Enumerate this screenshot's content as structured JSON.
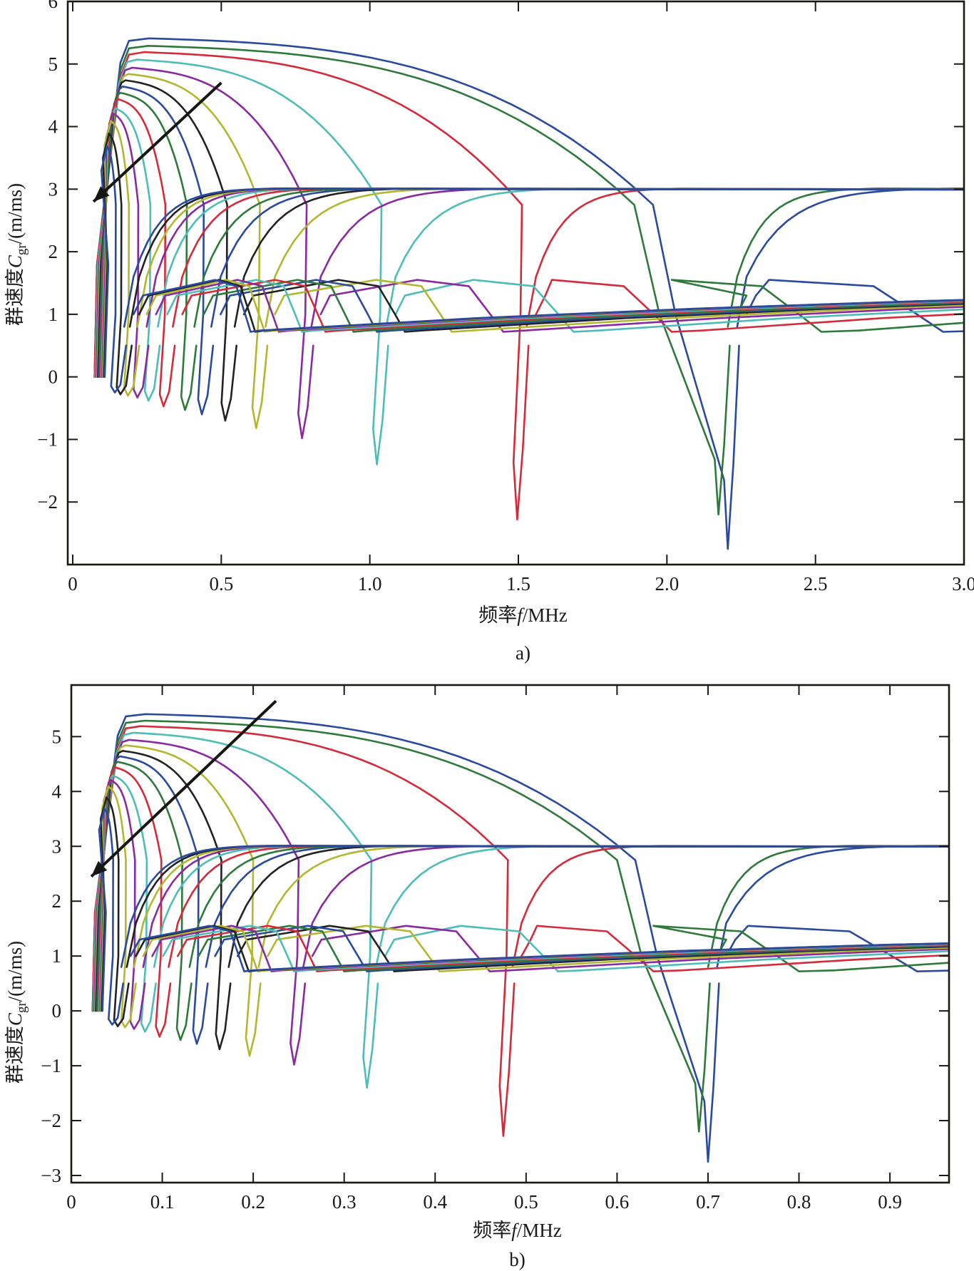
{
  "figure": {
    "panel_labels": [
      "a)",
      "b)"
    ]
  },
  "palette": {
    "blue": "#2a4aa0",
    "green": "#2e7a3a",
    "red": "#d62a3a",
    "cyan": "#4dbdb8",
    "purple": "#8a2aa0",
    "olive": "#b2b82e",
    "black": "#222222"
  },
  "chart_data": [
    {
      "type": "line",
      "panel": "a)",
      "title": "",
      "xlabel": "频率f/MHz",
      "xlabel_parts": {
        "prefix": "频率",
        "var": "f",
        "suffix": "/MHz"
      },
      "ylabel": "群速度C_gr/(m/ms)",
      "ylabel_parts": {
        "prefix": "群速度",
        "var": "C",
        "sub": "gr",
        "suffix": "/(m/ms)"
      },
      "xlim": [
        0,
        3.0
      ],
      "ylim": [
        -3.0,
        6.0
      ],
      "xticks": [
        0,
        0.5,
        1.0,
        1.5,
        2.0,
        2.5,
        3.0
      ],
      "xtick_labels": [
        "0",
        "0.5",
        "1.0",
        "1.5",
        "2.0",
        "2.5",
        "3.0"
      ],
      "yticks": [
        -2,
        -1,
        0,
        1,
        2,
        3,
        4,
        5,
        6
      ],
      "ytick_labels": [
        "−2",
        "−1",
        "0",
        "1",
        "2",
        "3",
        "4",
        "5",
        "6"
      ],
      "grid": false,
      "legend": "none",
      "annotation": {
        "type": "arrow",
        "from": [
          0.5,
          4.7
        ],
        "to": [
          0.07,
          2.8
        ],
        "head": "end"
      },
      "x_scale_from_b": 3.15
    },
    {
      "type": "line",
      "panel": "b)",
      "title": "",
      "xlabel": "频率f/MHz",
      "xlabel_parts": {
        "prefix": "频率",
        "var": "f",
        "suffix": "/MHz"
      },
      "ylabel": "群速度C_gr/(m/ms)",
      "ylabel_parts": {
        "prefix": "群速度",
        "var": "C",
        "sub": "gr",
        "suffix": "/(m/ms)"
      },
      "xlim": [
        0,
        0.965
      ],
      "ylim": [
        -3.13,
        5.94
      ],
      "xticks": [
        0,
        0.1,
        0.2,
        0.3,
        0.4,
        0.5,
        0.6,
        0.7,
        0.8,
        0.9
      ],
      "xtick_labels": [
        "0",
        "0.1",
        "0.2",
        "0.3",
        "0.4",
        "0.5",
        "0.6",
        "0.7",
        "0.8",
        "0.9"
      ],
      "yticks": [
        -3,
        -2,
        -1,
        0,
        1,
        2,
        3,
        4,
        5
      ],
      "ytick_labels": [
        "−3",
        "−2",
        "−1",
        "0",
        "1",
        "2",
        "3",
        "4",
        "5"
      ],
      "grid": false,
      "legend": "none",
      "annotation": {
        "type": "arrow",
        "from": [
          0.225,
          5.65
        ],
        "to": [
          0.022,
          2.45
        ],
        "head": "end"
      },
      "series": [
        {
          "name": "curve-1",
          "color": "blue",
          "peak": 5.42,
          "f_peak": 0.06,
          "f_drop": 0.62,
          "dip_f": 0.7,
          "dip_min": -2.75,
          "dip_f_spike": 0.026,
          "m2_f_start": 0.6,
          "m2_end": 2.4,
          "m2_dip_f": 0.93,
          "m3_dip_f": 0.93
        },
        {
          "name": "curve-2",
          "color": "green",
          "peak": 5.3,
          "f_peak": 0.06,
          "f_drop": 0.6,
          "dip_f": 0.69,
          "dip_min": -2.2,
          "dip_f_spike": 0.026,
          "m2_f_start": 0.55,
          "m2_end": 2.9,
          "m2_dip_f": 0.8,
          "m3_dip_f": 0.8
        },
        {
          "name": "curve-3",
          "color": "red",
          "peak": 5.2,
          "f_peak": 0.06,
          "f_drop": 0.48,
          "dip_f": 0.475,
          "dip_min": -2.28,
          "dip_f_spike": 0.026,
          "m2_f_start": 0.49,
          "m2_end": 3.0,
          "m2_dip_f": 0.64,
          "m3_dip_f": 0.64
        },
        {
          "name": "curve-4",
          "color": "cyan",
          "peak": 5.08,
          "f_peak": 0.058,
          "f_drop": 0.33,
          "dip_f": 0.325,
          "dip_min": -1.4,
          "dip_f_spike": 0.027,
          "m2_f_start": 0.33,
          "m2_end": 3.0,
          "m2_dip_f": 0.535,
          "m3_dip_f": 0.535
        },
        {
          "name": "curve-5",
          "color": "purple",
          "peak": 4.95,
          "f_peak": 0.056,
          "f_drop": 0.25,
          "dip_f": 0.245,
          "dip_min": -0.98,
          "dip_f_spike": 0.028,
          "m2_f_start": 0.25,
          "m2_end": 3.0,
          "m2_dip_f": 0.46,
          "m3_dip_f": 0.46
        },
        {
          "name": "curve-6",
          "color": "olive",
          "peak": 4.85,
          "f_peak": 0.054,
          "f_drop": 0.2,
          "dip_f": 0.196,
          "dip_min": -0.82,
          "dip_f_spike": 0.029,
          "m2_f_start": 0.2,
          "m2_end": 3.0,
          "m2_dip_f": 0.405,
          "m3_dip_f": 0.405
        },
        {
          "name": "curve-7",
          "color": "black",
          "peak": 4.75,
          "f_peak": 0.052,
          "f_drop": 0.165,
          "dip_f": 0.163,
          "dip_min": -0.7,
          "dip_f_spike": 0.03,
          "m2_f_start": 0.165,
          "m2_end": 3.0,
          "m2_dip_f": 0.355,
          "m3_dip_f": 0.355
        },
        {
          "name": "curve-8",
          "color": "blue",
          "peak": 4.65,
          "f_peak": 0.05,
          "f_drop": 0.14,
          "dip_f": 0.138,
          "dip_min": -0.6,
          "dip_f_spike": 0.031,
          "m2_f_start": 0.14,
          "m2_end": 3.0,
          "m2_dip_f": 0.325,
          "m3_dip_f": 0.325
        },
        {
          "name": "curve-9",
          "color": "green",
          "peak": 4.55,
          "f_peak": 0.048,
          "f_drop": 0.122,
          "dip_f": 0.12,
          "dip_min": -0.53,
          "dip_f_spike": 0.032,
          "m2_f_start": 0.122,
          "m2_end": 3.0,
          "m2_dip_f": 0.3,
          "m3_dip_f": 0.3
        },
        {
          "name": "curve-10",
          "color": "red",
          "peak": 4.45,
          "f_peak": 0.046,
          "f_drop": 0.099,
          "dip_f": 0.097,
          "dip_min": -0.47,
          "dip_f_spike": 0.033,
          "m2_f_start": 0.099,
          "m2_end": 3.0,
          "m2_dip_f": 0.27,
          "m3_dip_f": 0.27
        },
        {
          "name": "curve-11",
          "color": "cyan",
          "peak": 4.3,
          "f_peak": 0.044,
          "f_drop": 0.083,
          "dip_f": 0.081,
          "dip_min": -0.38,
          "dip_f_spike": 0.034,
          "m2_f_start": 0.083,
          "m2_end": 3.0,
          "m2_dip_f": 0.245,
          "m3_dip_f": 0.245
        },
        {
          "name": "curve-12",
          "color": "purple",
          "peak": 4.22,
          "f_peak": 0.042,
          "f_drop": 0.07,
          "dip_f": 0.069,
          "dip_min": -0.33,
          "dip_f_spike": 0.035,
          "m2_f_start": 0.07,
          "m2_end": 3.0,
          "m2_dip_f": 0.22,
          "m3_dip_f": 0.22
        },
        {
          "name": "curve-13",
          "color": "olive",
          "peak": 4.1,
          "f_peak": 0.04,
          "f_drop": 0.06,
          "dip_f": 0.059,
          "dip_min": -0.3,
          "dip_f_spike": 0.036,
          "m2_f_start": 0.06,
          "m2_end": 3.0,
          "m2_dip_f": 0.205,
          "m3_dip_f": 0.205
        },
        {
          "name": "curve-14",
          "color": "black",
          "peak": 3.9,
          "f_peak": 0.038,
          "f_drop": 0.052,
          "dip_f": 0.051,
          "dip_min": -0.28,
          "dip_f_spike": 0.037,
          "m2_f_start": 0.052,
          "m2_end": 3.0,
          "m2_dip_f": 0.195,
          "m3_dip_f": 0.195
        },
        {
          "name": "curve-15",
          "color": "blue",
          "peak": 3.7,
          "f_peak": 0.036,
          "f_drop": 0.046,
          "dip_f": 0.045,
          "dip_min": -0.25,
          "dip_f_spike": 0.038,
          "m2_f_start": 0.046,
          "m2_end": 3.0,
          "m2_dip_f": 0.19,
          "m3_dip_f": 0.19
        }
      ]
    }
  ]
}
